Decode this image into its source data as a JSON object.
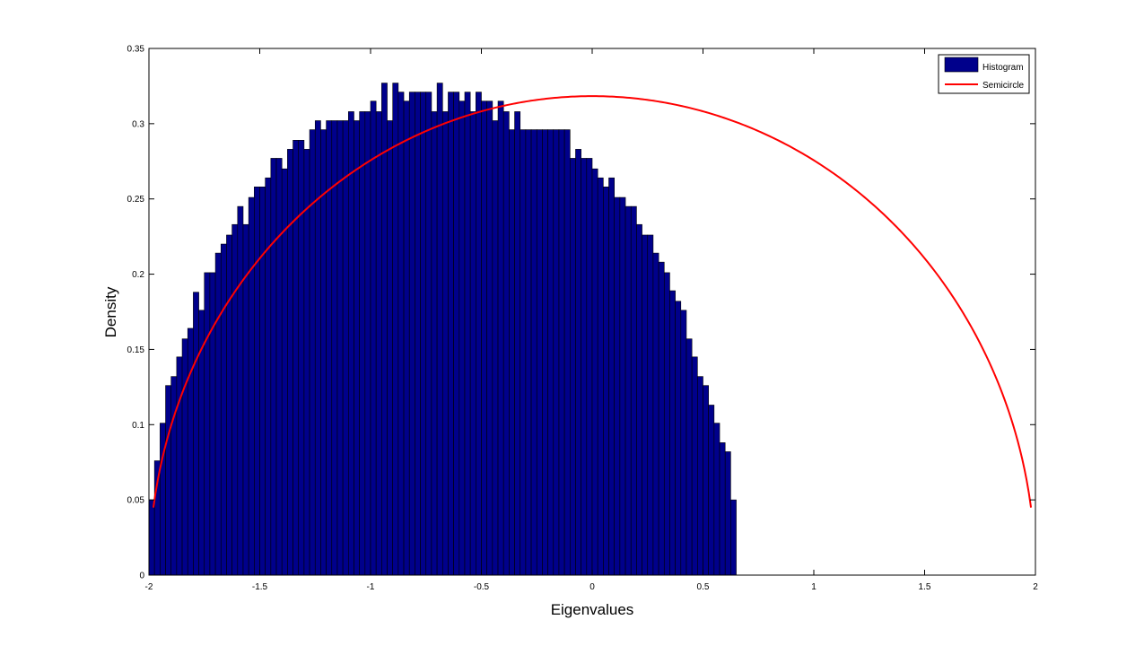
{
  "chart_data": {
    "type": "bar",
    "title": "",
    "xlabel": "Eigenvalues",
    "ylabel": "Density",
    "xlim": [
      -2,
      2
    ],
    "ylim": [
      0,
      0.35
    ],
    "xticks": [
      -2,
      -1.5,
      -1,
      -0.5,
      0,
      0.5,
      1,
      1.5,
      2
    ],
    "xtick_labels": [
      "-2",
      "-1.5",
      "-1",
      "-0.5",
      "0",
      "0.5",
      "1",
      "1.5",
      "2"
    ],
    "yticks": [
      0,
      0.05,
      0.1,
      0.15,
      0.2,
      0.25,
      0.3,
      0.35
    ],
    "ytick_labels": [
      "0",
      "0.05",
      "0.1",
      "0.15",
      "0.2",
      "0.25",
      "0.3",
      "0.35"
    ],
    "grid": false,
    "legend": {
      "position": "top-right",
      "entries": [
        {
          "label": "Histogram",
          "kind": "bar",
          "color": "#00008B"
        },
        {
          "label": "Semicircle",
          "kind": "line",
          "color": "#FF0000"
        }
      ]
    },
    "series": [
      {
        "name": "Histogram",
        "type": "bar",
        "color": "#00008B",
        "bin_start": -2,
        "bin_width": 0.025,
        "values": [
          0.05,
          0.076,
          0.101,
          0.126,
          0.132,
          0.145,
          0.157,
          0.164,
          0.188,
          0.176,
          0.201,
          0.201,
          0.214,
          0.22,
          0.226,
          0.233,
          0.245,
          0.233,
          0.251,
          0.258,
          0.258,
          0.264,
          0.277,
          0.277,
          0.27,
          0.283,
          0.289,
          0.289,
          0.283,
          0.296,
          0.302,
          0.296,
          0.302,
          0.302,
          0.302,
          0.302,
          0.308,
          0.302,
          0.308,
          0.308,
          0.315,
          0.308,
          0.327,
          0.302,
          0.327,
          0.321,
          0.315,
          0.321,
          0.321,
          0.321,
          0.321,
          0.308,
          0.327,
          0.308,
          0.321,
          0.321,
          0.315,
          0.321,
          0.308,
          0.321,
          0.315,
          0.315,
          0.302,
          0.315,
          0.308,
          0.296,
          0.308,
          0.296,
          0.296,
          0.296,
          0.296,
          0.296,
          0.296,
          0.296,
          0.296,
          0.296,
          0.277,
          0.283,
          0.277,
          0.277,
          0.27,
          0.264,
          0.258,
          0.264,
          0.251,
          0.251,
          0.245,
          0.245,
          0.233,
          0.226,
          0.226,
          0.214,
          0.208,
          0.201,
          0.189,
          0.182,
          0.176,
          0.157,
          0.145,
          0.132,
          0.126,
          0.113,
          0.101,
          0.088,
          0.082,
          0.05
        ]
      },
      {
        "name": "Semicircle",
        "type": "line",
        "color": "#FF0000",
        "formula": "sqrt(4 - x^2) / (2*pi)"
      }
    ]
  }
}
